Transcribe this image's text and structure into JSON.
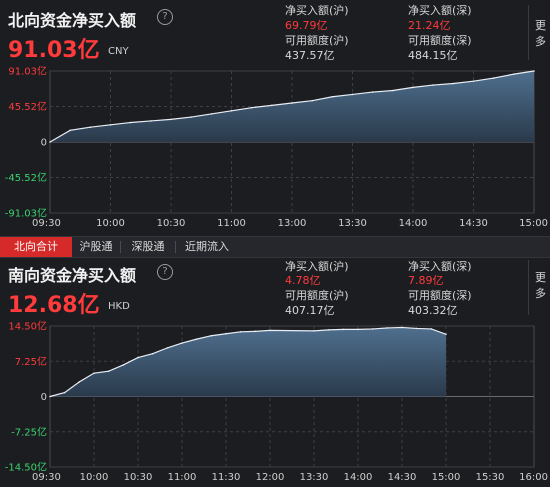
{
  "north": {
    "title": "北向资金净买入额",
    "value": "91.03亿",
    "currency": "CNY",
    "hu_label": "净买入额(沪)",
    "hu_value": "69.79亿",
    "shen_label": "净买入额(深)",
    "shen_value": "21.24亿",
    "hu_quota_label": "可用额度(沪)",
    "hu_quota": "437.57亿",
    "shen_quota_label": "可用额度(深)",
    "shen_quota": "484.15亿",
    "more_label": "更多",
    "chart_data": {
      "type": "area",
      "y_tick_labels": [
        "91.03亿",
        "45.52亿",
        "0",
        "-45.52亿",
        "-91.03亿"
      ],
      "y_ticks": [
        91.03,
        45.52,
        0,
        -45.52,
        -91.03
      ],
      "ylim": [
        -91.03,
        91.03
      ],
      "x_tick_labels": [
        "09:30",
        "10:00",
        "10:30",
        "11:00",
        "13:00",
        "13:30",
        "14:00",
        "14:30",
        "15:00"
      ],
      "x": [
        "09:30",
        "09:40",
        "09:50",
        "10:00",
        "10:10",
        "10:20",
        "10:30",
        "10:40",
        "10:50",
        "11:00",
        "11:10",
        "11:20",
        "11:30",
        "13:10",
        "13:20",
        "13:30",
        "13:40",
        "13:50",
        "14:00",
        "14:10",
        "14:20",
        "14:30",
        "14:40",
        "14:50",
        "15:00"
      ],
      "values": [
        0,
        15,
        19,
        22,
        25,
        27,
        29,
        32,
        36,
        40,
        44,
        47,
        50,
        53,
        58,
        61,
        64,
        66,
        70,
        73,
        75,
        78,
        82,
        87,
        91.03
      ],
      "grid": true
    }
  },
  "tabs": [
    "北向合计",
    "沪股通",
    "深股通",
    "近期流入"
  ],
  "south": {
    "title": "南向资金净买入额",
    "value": "12.68亿",
    "currency": "HKD",
    "hu_label": "净买入额(沪)",
    "hu_value": "4.78亿",
    "shen_label": "净买入额(深)",
    "shen_value": "7.89亿",
    "hu_quota_label": "可用额度(沪)",
    "hu_quota": "407.17亿",
    "shen_quota_label": "可用额度(深)",
    "shen_quota": "403.32亿",
    "more_label": "更多",
    "chart_data": {
      "type": "area",
      "y_tick_labels": [
        "14.50亿",
        "7.25亿",
        "0",
        "-7.25亿",
        "-14.50亿"
      ],
      "y_ticks": [
        14.5,
        7.25,
        0,
        -7.25,
        -14.5
      ],
      "ylim": [
        -14.5,
        14.5
      ],
      "x_tick_labels": [
        "09:30",
        "10:00",
        "10:30",
        "11:00",
        "11:30",
        "12:00",
        "13:30",
        "14:00",
        "14:30",
        "15:00",
        "15:30",
        "16:00"
      ],
      "x": [
        "09:30",
        "09:40",
        "09:50",
        "10:00",
        "10:10",
        "10:20",
        "10:30",
        "10:40",
        "10:50",
        "11:00",
        "11:10",
        "11:20",
        "11:30",
        "11:40",
        "11:50",
        "12:00",
        "13:30",
        "13:40",
        "13:50",
        "14:00",
        "14:10",
        "14:20",
        "14:30",
        "14:40",
        "14:50",
        "15:00"
      ],
      "values": [
        0,
        0.8,
        3.0,
        4.8,
        5.2,
        6.5,
        8.0,
        8.8,
        10.0,
        11.0,
        11.8,
        12.5,
        12.9,
        13.3,
        13.4,
        13.6,
        13.5,
        13.7,
        13.8,
        13.8,
        13.9,
        14.1,
        14.2,
        14.0,
        13.9,
        12.8
      ],
      "grid": true
    }
  }
}
